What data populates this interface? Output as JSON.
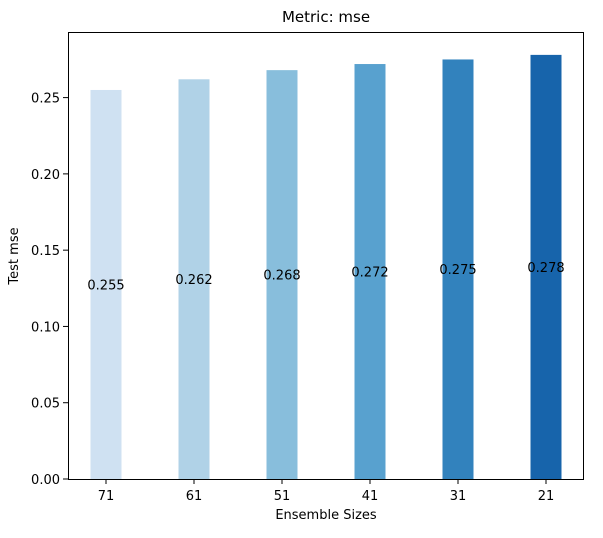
{
  "chart_data": {
    "type": "bar",
    "title": "Metric: mse",
    "xlabel": "Ensemble Sizes",
    "ylabel": "Test mse",
    "categories": [
      "71",
      "61",
      "51",
      "41",
      "31",
      "21"
    ],
    "values": [
      0.255,
      0.262,
      0.268,
      0.272,
      0.275,
      0.278
    ],
    "data_labels": [
      "0.255",
      "0.262",
      "0.268",
      "0.272",
      "0.275",
      "0.278"
    ],
    "bar_colors": [
      "#cfe1f2",
      "#b0d2e7",
      "#88bedc",
      "#58a1cf",
      "#3282bd",
      "#1764ab"
    ],
    "ylim": [
      0,
      0.293
    ],
    "yticks": [
      0.0,
      0.05,
      0.1,
      0.15,
      0.2,
      0.25
    ],
    "ytick_labels": [
      "0.00",
      "0.05",
      "0.10",
      "0.15",
      "0.20",
      "0.25"
    ],
    "grid": false,
    "legend": "none"
  }
}
